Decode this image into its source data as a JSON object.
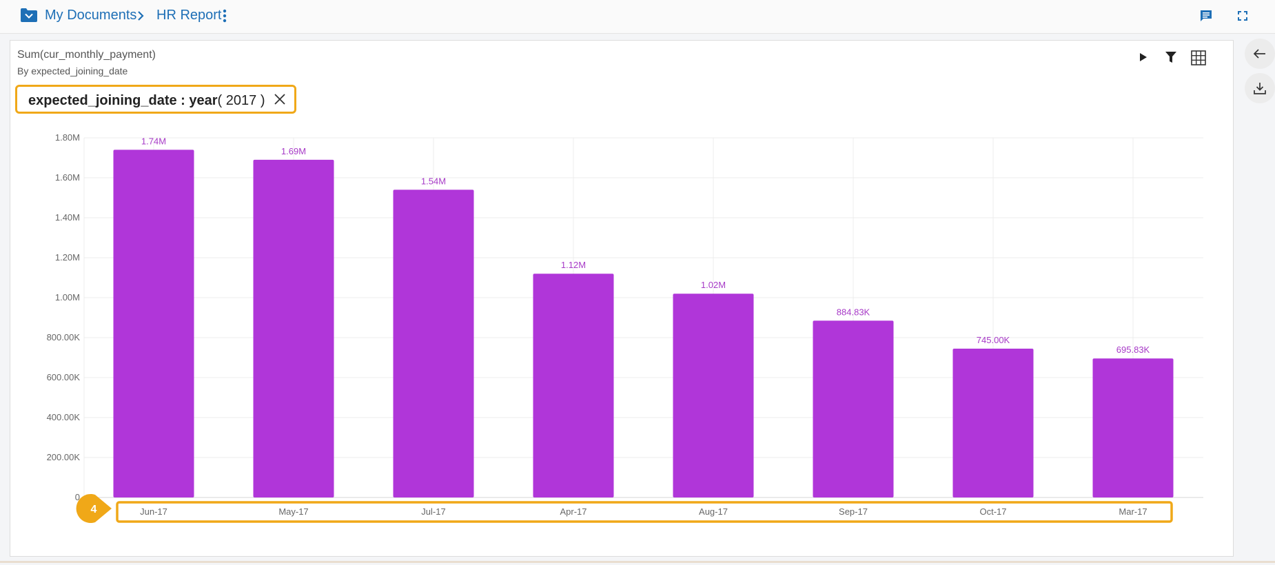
{
  "breadcrumb": {
    "folder_label": "My Documents",
    "report_label": "HR Report"
  },
  "icons": {
    "folder": "folder-chevron-icon",
    "chevron": "chevron-right-icon",
    "more": "more-vertical-icon",
    "comment": "comment-icon",
    "fullscreen": "fullscreen-icon",
    "play": "play-icon",
    "filter": "filter-icon",
    "grid": "table-grid-icon",
    "back": "arrow-left-icon",
    "download": "download-icon",
    "close": "close-icon"
  },
  "chart_header": {
    "title": "Sum(cur_monthly_payment)",
    "subtitle": "By expected_joining_date"
  },
  "filter_chip": {
    "field": "expected_joining_date : year",
    "value": "( 2017 )"
  },
  "colors": {
    "bar": "#b036d9",
    "label": "#a73ac7",
    "accent": "#1e6fb6",
    "highlight": "#f0a818"
  },
  "annotation_badge": "4",
  "chart_data": {
    "type": "bar",
    "categories": [
      "Jun-17",
      "May-17",
      "Jul-17",
      "Apr-17",
      "Aug-17",
      "Sep-17",
      "Oct-17",
      "Mar-17"
    ],
    "values": [
      1740000,
      1690000,
      1540000,
      1120000,
      1020000,
      884830,
      745000,
      695830
    ],
    "data_labels": [
      "1.74M",
      "1.69M",
      "1.54M",
      "1.12M",
      "1.02M",
      "884.83K",
      "745.00K",
      "695.83K"
    ],
    "y_ticks": [
      0,
      200000,
      400000,
      600000,
      800000,
      1000000,
      1200000,
      1400000,
      1600000,
      1800000
    ],
    "y_tick_labels": [
      "0",
      "200.00K",
      "400.00K",
      "600.00K",
      "800.00K",
      "1.00M",
      "1.20M",
      "1.40M",
      "1.60M",
      "1.80M"
    ],
    "ylim": [
      0,
      1800000
    ],
    "grid": true,
    "title": "Sum(cur_monthly_payment)",
    "subtitle": "By expected_joining_date"
  }
}
